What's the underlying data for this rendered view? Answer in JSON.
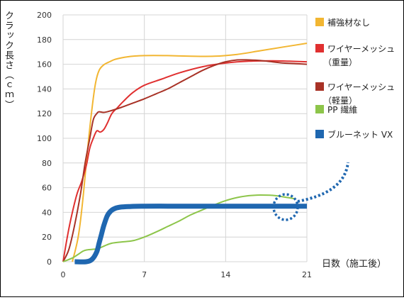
{
  "chart_data": {
    "type": "line",
    "title": "",
    "ylabel": "クラック長さ（ｃｍ）",
    "xlabel": "日数（施工後）",
    "xlim": [
      0,
      21
    ],
    "ylim": [
      0,
      200
    ],
    "xticks": [
      0,
      7,
      14,
      21
    ],
    "yticks": [
      0,
      20,
      40,
      60,
      80,
      100,
      120,
      140,
      160,
      180,
      200
    ],
    "grid": true,
    "legend_position": "right",
    "series": [
      {
        "name": "補強材なし",
        "legend_lines": [
          "補強材なし"
        ],
        "color": "#f2b632",
        "width": 2,
        "x": [
          0.8,
          1.3,
          1.7,
          2.1,
          2.5,
          2.8,
          3.1,
          3.5,
          4.0,
          4.5,
          5.5,
          7.0,
          9.0,
          11.0,
          13.0,
          15.0,
          17.0,
          19.0,
          21.0
        ],
        "y": [
          0,
          20,
          50,
          90,
          125,
          145,
          155,
          159.5,
          162,
          164,
          166,
          167,
          167,
          166.5,
          166.5,
          168,
          171,
          174,
          177
        ]
      },
      {
        "name": "ワイヤーメッシュ（重量）",
        "legend_lines": [
          "ワイヤーメッシュ",
          "（重量）"
        ],
        "color": "#e03030",
        "width": 2,
        "x": [
          0.0,
          0.4,
          0.8,
          1.2,
          1.6,
          2.0,
          2.3,
          2.6,
          2.9,
          3.2,
          3.5,
          3.8,
          4.2,
          4.7,
          5.2,
          6.0,
          7.0,
          8.5,
          10.0,
          12.0,
          14.0,
          16.0,
          18.0,
          19.5,
          21.0
        ],
        "y": [
          0,
          22,
          40,
          55,
          65,
          78,
          92,
          100,
          106,
          105,
          107,
          112,
          120,
          125,
          130,
          137,
          143,
          148,
          153,
          158,
          161,
          162.5,
          162.8,
          162.5,
          162
        ]
      },
      {
        "name": "ワイヤーメッシュ（軽量）",
        "legend_lines": [
          "ワイヤーメッシュ",
          "（軽量）"
        ],
        "color": "#a83226",
        "width": 2,
        "x": [
          0.0,
          0.5,
          1.0,
          1.5,
          1.9,
          2.3,
          2.6,
          2.9,
          3.1,
          3.5,
          4.0,
          5.0,
          6.0,
          7.0,
          8.0,
          9.0,
          10.0,
          11.0,
          12.0,
          13.0,
          14.0,
          15.0,
          16.0,
          17.0,
          18.0,
          19.0,
          20.0,
          21.0
        ],
        "y": [
          0,
          10,
          30,
          55,
          80,
          100,
          115,
          120,
          121.5,
          121,
          122,
          125,
          128.5,
          132,
          136,
          140,
          145,
          150,
          155,
          159,
          162,
          163.5,
          163.5,
          163,
          162,
          161,
          160.5,
          160
        ]
      },
      {
        "name": "PP 繊維",
        "legend_lines": [
          "PP 繊維"
        ],
        "color": "#8dc54a",
        "width": 2,
        "x": [
          0.0,
          0.8,
          1.3,
          1.7,
          2.0,
          2.5,
          3.0,
          3.6,
          4.2,
          5.0,
          6.0,
          7.0,
          8.0,
          9.0,
          10.0,
          11.0,
          12.0,
          13.0,
          14.0,
          15.0,
          16.0,
          17.0,
          18.0,
          19.0,
          20.0
        ],
        "y": [
          0,
          3,
          6,
          8.5,
          9.5,
          10,
          10.5,
          13,
          15,
          16,
          17,
          20,
          24,
          28.5,
          33,
          38,
          42,
          46,
          49.5,
          52,
          53.5,
          54,
          53.8,
          52.5,
          51
        ]
      },
      {
        "name": "ブルーネット VX",
        "legend_lines": [
          "ブルーネット VX"
        ],
        "color": "#1f67b0",
        "width": 7,
        "x": [
          1.0,
          2.0,
          2.5,
          2.9,
          3.1,
          3.3,
          3.5,
          3.8,
          4.1,
          4.5,
          5.0,
          6.0,
          7.0,
          9.0,
          11.0,
          13.0,
          15.0,
          17.0,
          19.0,
          21.0
        ],
        "y": [
          0,
          0,
          2,
          8,
          15,
          22,
          29,
          37,
          41,
          43.3,
          44.3,
          44.8,
          45,
          45,
          45,
          45,
          45,
          45,
          45,
          45
        ]
      }
    ]
  }
}
